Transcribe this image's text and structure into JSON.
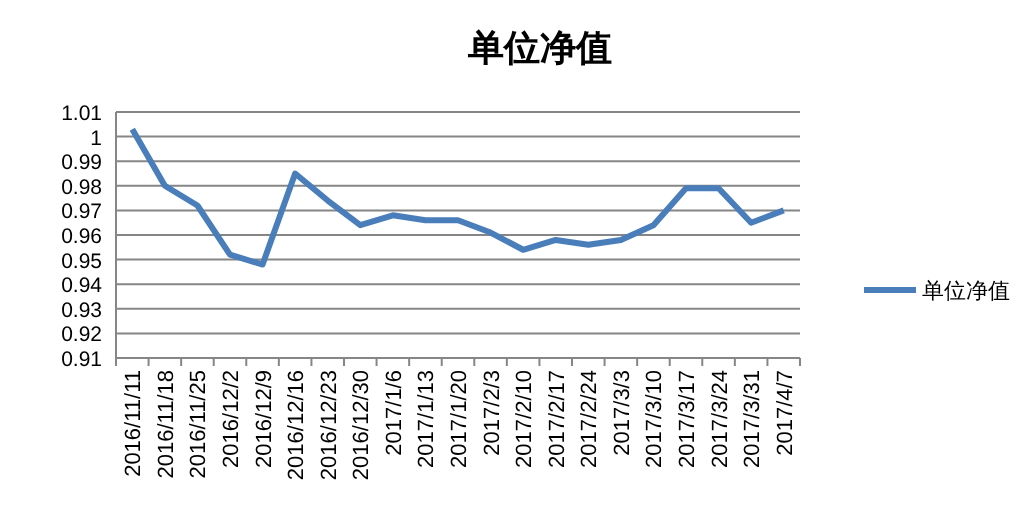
{
  "chart_data": {
    "type": "line",
    "title": "单位净值",
    "categories": [
      "2016/11/11",
      "2016/11/18",
      "2016/11/25",
      "2016/12/2",
      "2016/12/9",
      "2016/12/16",
      "2016/12/23",
      "2016/12/30",
      "2017/1/6",
      "2017/1/13",
      "2017/1/20",
      "2017/2/3",
      "2017/2/10",
      "2017/2/17",
      "2017/2/24",
      "2017/3/3",
      "2017/3/10",
      "2017/3/17",
      "2017/3/24",
      "2017/3/31",
      "2017/4/7"
    ],
    "series": [
      {
        "name": "单位净值",
        "color": "#4a7ebb",
        "values": [
          1.003,
          0.98,
          0.972,
          0.952,
          0.948,
          0.985,
          0.974,
          0.964,
          0.968,
          0.966,
          0.966,
          0.961,
          0.954,
          0.958,
          0.956,
          0.958,
          0.964,
          0.979,
          0.979,
          0.965,
          0.97
        ]
      }
    ],
    "ylim": [
      0.91,
      1.01
    ],
    "yticks": [
      0.91,
      0.92,
      0.93,
      0.94,
      0.95,
      0.96,
      0.97,
      0.98,
      0.99,
      {
        "value": 1,
        "label": "1"
      },
      1.01
    ],
    "grid": "y",
    "legend": "right",
    "marker": "none",
    "line_style": "solid"
  }
}
